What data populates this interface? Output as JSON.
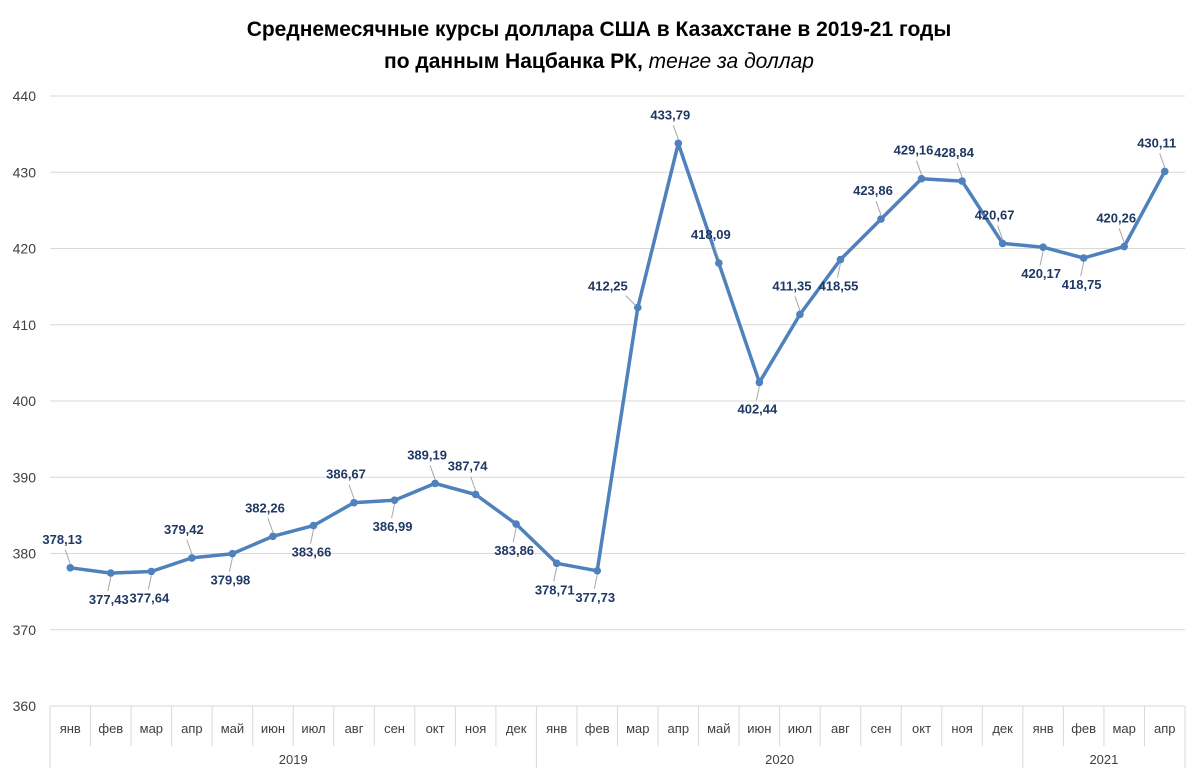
{
  "chart_data": {
    "type": "line",
    "title_line1": "Среднемесячные курсы доллара США в Казахстане в 2019-21 годы",
    "title_line2_bold": "по данным Нацбанка РК, ",
    "title_line2_italic": "тенге за доллар",
    "months": [
      "янв",
      "фев",
      "мар",
      "апр",
      "май",
      "июн",
      "июл",
      "авг",
      "сен",
      "окт",
      "ноя",
      "дек",
      "янв",
      "фев",
      "мар",
      "апр",
      "май",
      "июн",
      "июл",
      "авг",
      "сен",
      "окт",
      "ноя",
      "дек",
      "янв",
      "фев",
      "мар",
      "апр"
    ],
    "years": [
      {
        "label": "2019",
        "count": 12
      },
      {
        "label": "2020",
        "count": 12
      },
      {
        "label": "2021",
        "count": 4
      }
    ],
    "values": [
      378.13,
      377.43,
      377.64,
      379.42,
      379.98,
      382.26,
      383.66,
      386.67,
      386.99,
      389.19,
      387.74,
      383.86,
      378.71,
      377.73,
      412.25,
      433.79,
      418.09,
      402.44,
      411.35,
      418.55,
      423.86,
      429.16,
      428.84,
      420.67,
      420.17,
      418.75,
      420.26,
      430.11
    ],
    "data_labels": [
      "378,13",
      "377,43",
      "377,64",
      "379,42",
      "379,98",
      "382,26",
      "383,66",
      "386,67",
      "386,99",
      "389,19",
      "387,74",
      "383,86",
      "378,71",
      "377,73",
      "412,25",
      "433,79",
      "418,09",
      "402,44",
      "411,35",
      "418,55",
      "423,86",
      "429,16",
      "428,84",
      "420,67",
      "420,17",
      "418,75",
      "420,26",
      "430,11"
    ],
    "label_positions": [
      "above",
      "below",
      "below",
      "above",
      "below",
      "above",
      "below",
      "above",
      "below",
      "above",
      "above",
      "below",
      "below",
      "below",
      "left",
      "above",
      "above",
      "below",
      "above",
      "below",
      "above",
      "above",
      "above",
      "above",
      "below",
      "below",
      "above",
      "above"
    ],
    "ylim": [
      360,
      440
    ],
    "yticks": [
      360,
      370,
      380,
      390,
      400,
      410,
      420,
      430,
      440
    ],
    "grid": true,
    "line_color": "#4f81bd",
    "label_color": "#1f3864"
  }
}
